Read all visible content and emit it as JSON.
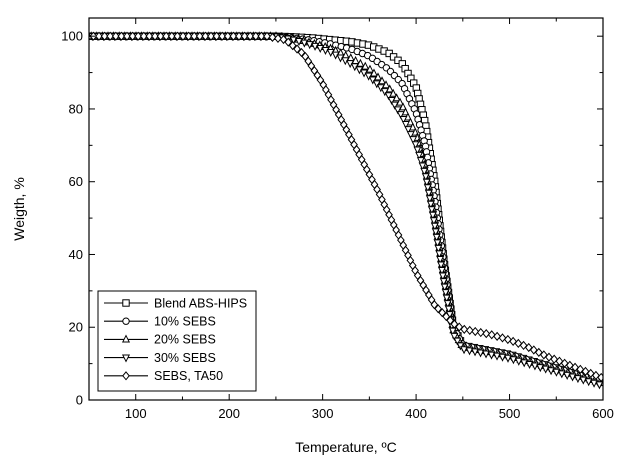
{
  "chart_data": {
    "type": "line",
    "title": "",
    "xlabel": "Temperature, ºC",
    "ylabel": "Weigth, %",
    "xlim": [
      50,
      600
    ],
    "ylim": [
      0,
      105
    ],
    "x_ticks": [
      100,
      200,
      300,
      400,
      500,
      600
    ],
    "y_ticks": [
      0,
      20,
      40,
      60,
      80,
      100
    ],
    "x_tick_labels": [
      "100",
      "200",
      "300",
      "400",
      "500",
      "600"
    ],
    "y_tick_labels": [
      "0",
      "20",
      "40",
      "60",
      "80",
      "100"
    ],
    "grid": false,
    "legend_position": "bottom-left",
    "line_color": "#000000",
    "series": [
      {
        "name": "Blend ABS-HIPS",
        "marker": "square",
        "points": [
          [
            50,
            100
          ],
          [
            100,
            100
          ],
          [
            150,
            100
          ],
          [
            200,
            100
          ],
          [
            250,
            100
          ],
          [
            270,
            99.8
          ],
          [
            290,
            99.5
          ],
          [
            310,
            99
          ],
          [
            330,
            98.5
          ],
          [
            350,
            97.5
          ],
          [
            370,
            95.5
          ],
          [
            385,
            92.5
          ],
          [
            400,
            86
          ],
          [
            410,
            76
          ],
          [
            420,
            60
          ],
          [
            430,
            38
          ],
          [
            440,
            20
          ],
          [
            450,
            15
          ],
          [
            460,
            14.5
          ],
          [
            480,
            13.5
          ],
          [
            500,
            12.5
          ],
          [
            520,
            11
          ],
          [
            540,
            9.5
          ],
          [
            560,
            8
          ],
          [
            580,
            6.5
          ],
          [
            600,
            5
          ]
        ]
      },
      {
        "name": "10% SEBS",
        "marker": "circle",
        "points": [
          [
            50,
            100
          ],
          [
            100,
            100
          ],
          [
            150,
            100
          ],
          [
            200,
            100
          ],
          [
            250,
            100
          ],
          [
            270,
            99.5
          ],
          [
            290,
            98.8
          ],
          [
            310,
            97.8
          ],
          [
            330,
            96.5
          ],
          [
            350,
            94.5
          ],
          [
            370,
            91
          ],
          [
            385,
            87
          ],
          [
            400,
            79
          ],
          [
            410,
            70
          ],
          [
            420,
            55
          ],
          [
            430,
            37
          ],
          [
            440,
            20
          ],
          [
            450,
            15
          ],
          [
            460,
            14.5
          ],
          [
            480,
            13.5
          ],
          [
            500,
            12.5
          ],
          [
            520,
            11
          ],
          [
            540,
            9.5
          ],
          [
            560,
            8
          ],
          [
            580,
            6.5
          ],
          [
            600,
            5
          ]
        ]
      },
      {
        "name": "20% SEBS",
        "marker": "triangle-up",
        "points": [
          [
            50,
            100
          ],
          [
            100,
            100
          ],
          [
            150,
            100
          ],
          [
            200,
            100
          ],
          [
            250,
            100
          ],
          [
            270,
            99.3
          ],
          [
            290,
            98
          ],
          [
            310,
            96.5
          ],
          [
            330,
            94
          ],
          [
            350,
            91
          ],
          [
            370,
            86
          ],
          [
            385,
            81
          ],
          [
            400,
            73
          ],
          [
            410,
            64
          ],
          [
            420,
            50
          ],
          [
            430,
            34
          ],
          [
            440,
            19
          ],
          [
            450,
            14.5
          ],
          [
            460,
            14
          ],
          [
            480,
            13
          ],
          [
            500,
            12
          ],
          [
            520,
            10.5
          ],
          [
            540,
            9
          ],
          [
            560,
            7.5
          ],
          [
            580,
            6
          ],
          [
            600,
            4.5
          ]
        ]
      },
      {
        "name": "30% SEBS",
        "marker": "triangle-down",
        "points": [
          [
            50,
            100
          ],
          [
            100,
            100
          ],
          [
            150,
            100
          ],
          [
            200,
            100
          ],
          [
            250,
            100
          ],
          [
            270,
            99
          ],
          [
            290,
            97.5
          ],
          [
            310,
            95.5
          ],
          [
            330,
            92.5
          ],
          [
            350,
            89
          ],
          [
            370,
            84
          ],
          [
            385,
            78
          ],
          [
            400,
            70
          ],
          [
            410,
            62
          ],
          [
            420,
            48
          ],
          [
            430,
            32
          ],
          [
            440,
            18
          ],
          [
            450,
            14
          ],
          [
            460,
            13.5
          ],
          [
            480,
            12.5
          ],
          [
            500,
            11.5
          ],
          [
            520,
            10
          ],
          [
            540,
            8.5
          ],
          [
            560,
            7
          ],
          [
            580,
            5.5
          ],
          [
            600,
            4
          ]
        ]
      },
      {
        "name": "SEBS, TA50",
        "marker": "diamond",
        "points": [
          [
            50,
            100
          ],
          [
            100,
            100
          ],
          [
            150,
            100
          ],
          [
            200,
            100
          ],
          [
            240,
            100
          ],
          [
            260,
            99
          ],
          [
            280,
            95
          ],
          [
            300,
            87
          ],
          [
            320,
            77
          ],
          [
            340,
            67
          ],
          [
            360,
            57
          ],
          [
            380,
            46
          ],
          [
            400,
            35
          ],
          [
            420,
            26
          ],
          [
            440,
            21
          ],
          [
            450,
            19.5
          ],
          [
            460,
            19
          ],
          [
            480,
            18
          ],
          [
            500,
            16.5
          ],
          [
            520,
            14.5
          ],
          [
            540,
            12
          ],
          [
            560,
            10
          ],
          [
            580,
            8
          ],
          [
            600,
            6
          ]
        ]
      }
    ]
  }
}
